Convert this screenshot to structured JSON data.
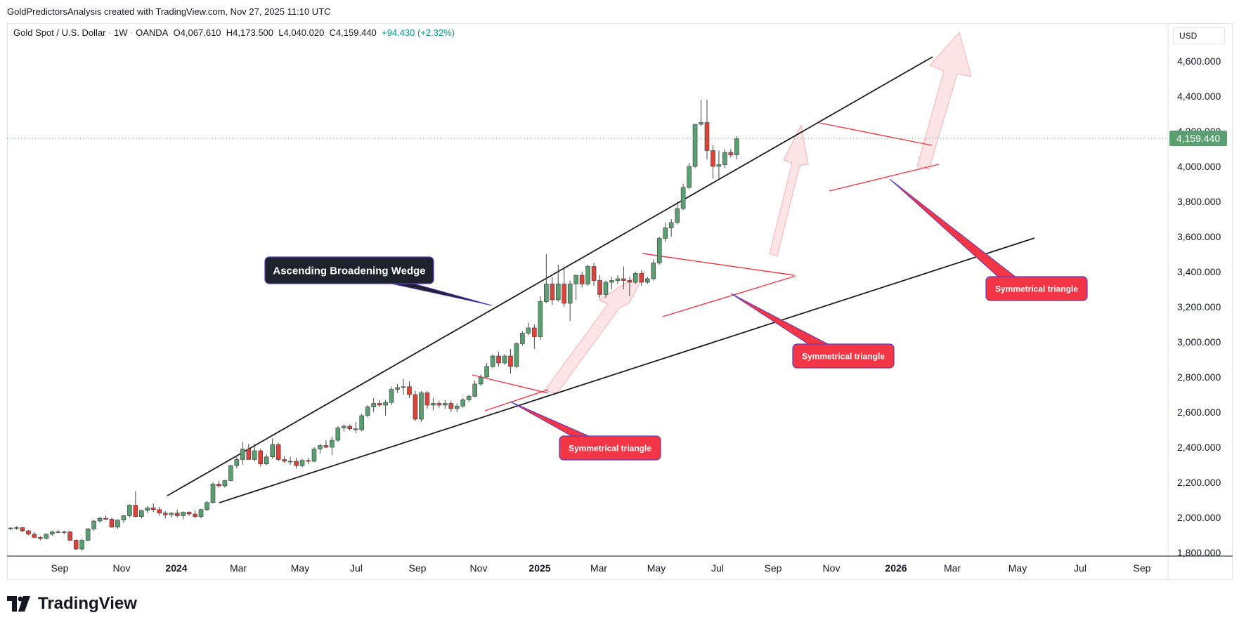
{
  "header": {
    "caption": "GoldPredictorsAnalysis created with TradingView.com, Nov 27, 2025 11:10 UTC"
  },
  "legend": {
    "symbol": "Gold Spot / U.S. Dollar",
    "interval": "1W",
    "exchange": "OANDA",
    "open": "O4,067.610",
    "high": "H4,173.500",
    "low": "L4,040.020",
    "close": "C4,159.440",
    "change": "+94.430 (+2.32%)"
  },
  "currency": "USD",
  "brand": {
    "name": "TradingView",
    "logo_icon": "tradingview-logo-icon"
  },
  "colors": {
    "bull": "#5b9e72",
    "bear": "#d9443a",
    "trendline": "#1e1e1e",
    "triangle": "#f23645",
    "label_red": "#f23645",
    "label_dark": "#1e222d",
    "price_tag": "#5b9e72"
  },
  "chart_data": {
    "type": "candlestick",
    "title": "Gold Spot / U.S. Dollar",
    "x_tick_labels": [
      "Sep",
      "Nov",
      "2024",
      "Mar",
      "May",
      "Jul",
      "Sep",
      "Nov",
      "2025",
      "Mar",
      "May",
      "Jul",
      "Sep",
      "Nov",
      "2026",
      "Mar",
      "May",
      "Jul",
      "Sep"
    ],
    "y_tick_labels": [
      "1,800.000",
      "2,000.000",
      "2,200.000",
      "2,400.000",
      "2,600.000",
      "2,800.000",
      "3,000.000",
      "3,200.000",
      "3,400.000",
      "3,600.000",
      "3,800.000",
      "4,000.000",
      "4,200.000",
      "4,400.000",
      "4,600.000"
    ],
    "y_ticks": [
      1800,
      2000,
      2200,
      2400,
      2600,
      2800,
      3000,
      3200,
      3400,
      3600,
      3800,
      4000,
      4200,
      4400,
      4600
    ],
    "ylim": [
      1720,
      4790
    ],
    "last_price": 4159.44,
    "last_price_label": "4,159.440",
    "candles": [
      [
        1937,
        1945,
        1926,
        1940
      ],
      [
        1940,
        1950,
        1930,
        1942
      ],
      [
        1942,
        1946,
        1916,
        1924
      ],
      [
        1924,
        1928,
        1898,
        1905
      ],
      [
        1905,
        1918,
        1884,
        1886
      ],
      [
        1886,
        1895,
        1870,
        1880
      ],
      [
        1880,
        1910,
        1875,
        1905
      ],
      [
        1905,
        1925,
        1895,
        1918
      ],
      [
        1918,
        1930,
        1910,
        1915
      ],
      [
        1915,
        1925,
        1905,
        1918
      ],
      [
        1918,
        1925,
        1865,
        1870
      ],
      [
        1870,
        1875,
        1815,
        1820
      ],
      [
        1820,
        1880,
        1810,
        1870
      ],
      [
        1870,
        1940,
        1865,
        1935
      ],
      [
        1935,
        1985,
        1925,
        1980
      ],
      [
        1980,
        2005,
        1970,
        1995
      ],
      [
        1995,
        2010,
        1985,
        1990
      ],
      [
        1990,
        2000,
        1940,
        1945
      ],
      [
        1945,
        1990,
        1935,
        1985
      ],
      [
        1985,
        2015,
        1970,
        2010
      ],
      [
        2010,
        2075,
        2000,
        2070
      ],
      [
        2070,
        2150,
        2000,
        2005
      ],
      [
        2005,
        2045,
        1995,
        2040
      ],
      [
        2040,
        2065,
        2025,
        2055
      ],
      [
        2055,
        2080,
        2030,
        2045
      ],
      [
        2045,
        2060,
        2010,
        2025
      ],
      [
        2025,
        2035,
        1995,
        2015
      ],
      [
        2015,
        2030,
        2000,
        2025
      ],
      [
        2025,
        2045,
        2000,
        2010
      ],
      [
        2010,
        2035,
        1990,
        2030
      ],
      [
        2030,
        2035,
        2010,
        2020
      ],
      [
        2020,
        2040,
        1995,
        2005
      ],
      [
        2005,
        2050,
        1995,
        2045
      ],
      [
        2045,
        2095,
        2035,
        2085
      ],
      [
        2085,
        2200,
        2080,
        2190
      ],
      [
        2190,
        2210,
        2170,
        2180
      ],
      [
        2180,
        2215,
        2170,
        2210
      ],
      [
        2210,
        2300,
        2205,
        2295
      ],
      [
        2295,
        2345,
        2280,
        2330
      ],
      [
        2330,
        2430,
        2300,
        2390
      ],
      [
        2390,
        2420,
        2330,
        2330
      ],
      [
        2330,
        2420,
        2320,
        2380
      ],
      [
        2380,
        2390,
        2290,
        2305
      ],
      [
        2305,
        2360,
        2300,
        2345
      ],
      [
        2345,
        2450,
        2335,
        2415
      ],
      [
        2415,
        2425,
        2320,
        2330
      ],
      [
        2330,
        2350,
        2310,
        2320
      ],
      [
        2320,
        2345,
        2300,
        2320
      ],
      [
        2320,
        2340,
        2280,
        2295
      ],
      [
        2295,
        2335,
        2285,
        2325
      ],
      [
        2325,
        2340,
        2305,
        2320
      ],
      [
        2320,
        2400,
        2315,
        2390
      ],
      [
        2390,
        2420,
        2365,
        2410
      ],
      [
        2410,
        2440,
        2395,
        2400
      ],
      [
        2400,
        2460,
        2355,
        2440
      ],
      [
        2440,
        2520,
        2430,
        2510
      ],
      [
        2510,
        2530,
        2490,
        2520
      ],
      [
        2520,
        2530,
        2495,
        2505
      ],
      [
        2505,
        2545,
        2480,
        2500
      ],
      [
        2500,
        2590,
        2490,
        2580
      ],
      [
        2580,
        2640,
        2570,
        2630
      ],
      [
        2630,
        2680,
        2600,
        2650
      ],
      [
        2650,
        2670,
        2630,
        2640
      ],
      [
        2640,
        2670,
        2580,
        2655
      ],
      [
        2655,
        2745,
        2640,
        2730
      ],
      [
        2730,
        2760,
        2710,
        2740
      ],
      [
        2740,
        2790,
        2700,
        2745
      ],
      [
        2745,
        2775,
        2680,
        2700
      ],
      [
        2700,
        2720,
        2550,
        2560
      ],
      [
        2560,
        2720,
        2545,
        2710
      ],
      [
        2710,
        2720,
        2620,
        2640
      ],
      [
        2640,
        2680,
        2610,
        2650
      ],
      [
        2650,
        2665,
        2625,
        2640
      ],
      [
        2640,
        2670,
        2620,
        2650
      ],
      [
        2650,
        2665,
        2600,
        2620
      ],
      [
        2620,
        2650,
        2600,
        2635
      ],
      [
        2635,
        2680,
        2625,
        2670
      ],
      [
        2670,
        2700,
        2660,
        2690
      ],
      [
        2690,
        2780,
        2685,
        2760
      ],
      [
        2760,
        2815,
        2750,
        2800
      ],
      [
        2800,
        2880,
        2795,
        2860
      ],
      [
        2860,
        2930,
        2850,
        2920
      ],
      [
        2920,
        2945,
        2860,
        2880
      ],
      [
        2880,
        2930,
        2870,
        2920
      ],
      [
        2920,
        2960,
        2820,
        2860
      ],
      [
        2860,
        3000,
        2850,
        2990
      ],
      [
        2990,
        3060,
        2980,
        3050
      ],
      [
        3050,
        3110,
        3040,
        3080
      ],
      [
        3080,
        3100,
        2960,
        3030
      ],
      [
        3030,
        3260,
        3010,
        3230
      ],
      [
        3230,
        3500,
        3220,
        3330
      ],
      [
        3330,
        3370,
        3210,
        3240
      ],
      [
        3240,
        3440,
        3230,
        3330
      ],
      [
        3330,
        3430,
        3200,
        3220
      ],
      [
        3220,
        3350,
        3120,
        3330
      ],
      [
        3330,
        3350,
        3240,
        3380
      ],
      [
        3380,
        3400,
        3310,
        3330
      ],
      [
        3330,
        3440,
        3320,
        3430
      ],
      [
        3430,
        3450,
        3320,
        3350
      ],
      [
        3350,
        3380,
        3250,
        3270
      ],
      [
        3270,
        3350,
        3250,
        3340
      ],
      [
        3340,
        3370,
        3300,
        3350
      ],
      [
        3350,
        3380,
        3330,
        3360
      ],
      [
        3360,
        3430,
        3300,
        3350
      ],
      [
        3350,
        3370,
        3260,
        3340
      ],
      [
        3340,
        3400,
        3330,
        3390
      ],
      [
        3390,
        3410,
        3320,
        3340
      ],
      [
        3340,
        3370,
        3330,
        3360
      ],
      [
        3360,
        3470,
        3350,
        3450
      ],
      [
        3450,
        3600,
        3440,
        3590
      ],
      [
        3590,
        3680,
        3570,
        3650
      ],
      [
        3650,
        3700,
        3600,
        3680
      ],
      [
        3680,
        3800,
        3670,
        3760
      ],
      [
        3760,
        3900,
        3750,
        3880
      ],
      [
        3880,
        4020,
        3870,
        4000
      ],
      [
        4000,
        4240,
        3990,
        4240
      ],
      [
        4240,
        4380,
        4230,
        4250
      ],
      [
        4250,
        4380,
        4040,
        4090
      ],
      [
        4090,
        4120,
        3930,
        4000
      ],
      [
        4000,
        4090,
        3930,
        4010
      ],
      [
        4010,
        4100,
        3990,
        4080
      ],
      [
        4080,
        4100,
        4050,
        4065
      ],
      [
        4065,
        4173,
        4040,
        4159
      ]
    ],
    "annotations": [
      {
        "text": "Ascending Broadening Wedge",
        "style": "dark"
      },
      {
        "text": "Symmetrical triangle",
        "style": "red"
      },
      {
        "text": "Symmetrical triangle",
        "style": "red"
      },
      {
        "text": "Symmetrical triangle",
        "style": "red"
      }
    ],
    "grid": false
  }
}
